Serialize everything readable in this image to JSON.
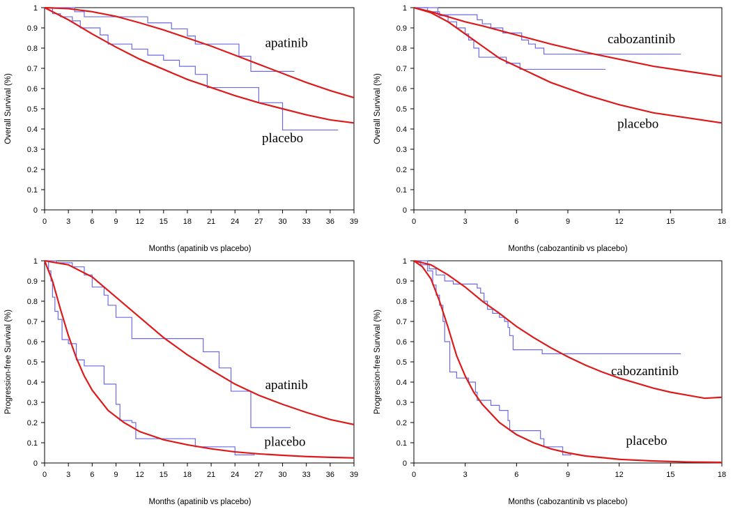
{
  "chart_data": [
    {
      "type": "line",
      "id": "panel-a",
      "xlabel": "Months (apatinib vs placebo)",
      "ylabel": "Overall Survival (%)",
      "xlim": [
        0,
        39
      ],
      "ylim": [
        0,
        1
      ],
      "xticks": [
        0,
        3,
        6,
        9,
        12,
        15,
        18,
        21,
        24,
        27,
        30,
        33,
        36,
        39
      ],
      "yticks": [
        0,
        0.1,
        0.2,
        0.3,
        0.4,
        0.5,
        0.6,
        0.7,
        0.8,
        0.9,
        1
      ],
      "series": [
        {
          "name": "apatinib",
          "kind": "km",
          "color": "#6a6ae6",
          "x": [
            0,
            3.8,
            5,
            9,
            13,
            16,
            18,
            19,
            24.5,
            26,
            31.5
          ],
          "y": [
            1,
            0.98,
            0.955,
            0.955,
            0.925,
            0.895,
            0.86,
            0.82,
            0.76,
            0.685,
            0.685
          ]
        },
        {
          "name": "placebo",
          "kind": "km",
          "color": "#6a6ae6",
          "x": [
            0,
            1,
            2,
            3.5,
            4.5,
            7,
            8,
            11,
            13,
            15,
            17,
            19,
            20.5,
            23,
            27,
            30,
            37
          ],
          "y": [
            1,
            0.97,
            0.955,
            0.935,
            0.9,
            0.865,
            0.82,
            0.795,
            0.765,
            0.74,
            0.71,
            0.67,
            0.605,
            0.605,
            0.53,
            0.395,
            0.395
          ]
        },
        {
          "name": "apatinib",
          "kind": "fit",
          "color": "#dd1a1a",
          "x": [
            0,
            3,
            6,
            9,
            12,
            15,
            18,
            21,
            24,
            27,
            30,
            33,
            36,
            39
          ],
          "y": [
            1,
            0.995,
            0.98,
            0.957,
            0.925,
            0.89,
            0.85,
            0.81,
            0.765,
            0.72,
            0.675,
            0.63,
            0.59,
            0.555
          ]
        },
        {
          "name": "placebo",
          "kind": "fit",
          "color": "#dd1a1a",
          "x": [
            0,
            3,
            6,
            9,
            12,
            15,
            18,
            21,
            24,
            27,
            30,
            33,
            36,
            39
          ],
          "y": [
            1,
            0.94,
            0.87,
            0.805,
            0.745,
            0.695,
            0.645,
            0.605,
            0.565,
            0.53,
            0.5,
            0.47,
            0.445,
            0.43
          ]
        }
      ],
      "annotations": [
        {
          "text": "apatinib",
          "x": 30.5,
          "y": 0.805
        },
        {
          "text": "placebo",
          "x": 30,
          "y": 0.335
        }
      ]
    },
    {
      "type": "line",
      "id": "panel-b",
      "xlabel": "Months (cabozantinib vs placebo)",
      "ylabel": "Overall Survival (%)",
      "xlim": [
        0,
        18
      ],
      "ylim": [
        0,
        1
      ],
      "xticks": [
        0,
        3,
        6,
        9,
        12,
        15,
        18
      ],
      "yticks": [
        0,
        0.1,
        0.2,
        0.3,
        0.4,
        0.5,
        0.6,
        0.7,
        0.8,
        0.9,
        1
      ],
      "series": [
        {
          "name": "cabozantinib",
          "kind": "km",
          "color": "#6a6ae6",
          "x": [
            0,
            1.4,
            3.7,
            4,
            4.5,
            5.2,
            6.3,
            6.7,
            7.1,
            7.6,
            15.6
          ],
          "y": [
            1,
            0.965,
            0.94,
            0.92,
            0.9,
            0.875,
            0.84,
            0.82,
            0.8,
            0.77,
            0.77
          ]
        },
        {
          "name": "placebo",
          "kind": "km",
          "color": "#6a6ae6",
          "x": [
            0,
            0.8,
            1.5,
            2,
            2.5,
            3,
            3.2,
            3.5,
            3.8,
            5.4,
            6.2,
            11.2
          ],
          "y": [
            1,
            0.98,
            0.96,
            0.93,
            0.9,
            0.87,
            0.84,
            0.8,
            0.755,
            0.725,
            0.695,
            0.695
          ]
        },
        {
          "name": "cabozantinib",
          "kind": "fit",
          "color": "#dd1a1a",
          "x": [
            0,
            1,
            2,
            3,
            4,
            6,
            8,
            10,
            12,
            14,
            16,
            18
          ],
          "y": [
            1,
            0.98,
            0.955,
            0.93,
            0.91,
            0.865,
            0.82,
            0.78,
            0.745,
            0.71,
            0.685,
            0.66
          ]
        },
        {
          "name": "placebo",
          "kind": "fit",
          "color": "#dd1a1a",
          "x": [
            0,
            1,
            2,
            3,
            4,
            5,
            6,
            8,
            10,
            12,
            14,
            16,
            18
          ],
          "y": [
            1,
            0.975,
            0.93,
            0.87,
            0.81,
            0.75,
            0.71,
            0.63,
            0.57,
            0.52,
            0.48,
            0.455,
            0.43
          ]
        }
      ],
      "annotations": [
        {
          "text": "cabozantinib",
          "x": 13.3,
          "y": 0.825
        },
        {
          "text": "placebo",
          "x": 13.1,
          "y": 0.405
        }
      ]
    },
    {
      "type": "line",
      "id": "panel-c",
      "xlabel": "Months (apatinib vs placebo)",
      "ylabel": "Progression-free Survival (%)",
      "xlim": [
        0,
        39
      ],
      "ylim": [
        0,
        1
      ],
      "xticks": [
        0,
        3,
        6,
        9,
        12,
        15,
        18,
        21,
        24,
        27,
        30,
        33,
        36,
        39
      ],
      "yticks": [
        0,
        0.1,
        0.2,
        0.3,
        0.4,
        0.5,
        0.6,
        0.7,
        0.8,
        0.9,
        1
      ],
      "series": [
        {
          "name": "apatinib",
          "kind": "km",
          "color": "#6a6ae6",
          "x": [
            0,
            1.5,
            3.5,
            5,
            6,
            7.5,
            8,
            9,
            11,
            20,
            22,
            23.5,
            26,
            31
          ],
          "y": [
            1,
            0.99,
            0.97,
            0.93,
            0.87,
            0.83,
            0.78,
            0.72,
            0.615,
            0.55,
            0.47,
            0.355,
            0.175,
            0.175
          ]
        },
        {
          "name": "placebo",
          "kind": "km",
          "color": "#6a6ae6",
          "x": [
            0,
            0.5,
            0.8,
            1,
            1.3,
            1.7,
            2.2,
            3,
            4,
            5,
            7.5,
            9,
            9.5,
            11,
            11.5,
            19,
            24,
            26.5
          ],
          "y": [
            1,
            0.95,
            0.9,
            0.82,
            0.75,
            0.71,
            0.61,
            0.59,
            0.51,
            0.48,
            0.39,
            0.29,
            0.21,
            0.2,
            0.12,
            0.08,
            0.04,
            0.04
          ]
        },
        {
          "name": "apatinib",
          "kind": "fit",
          "color": "#dd1a1a",
          "x": [
            0,
            3,
            6,
            9,
            12,
            15,
            18,
            21,
            24,
            27,
            30,
            33,
            36,
            39
          ],
          "y": [
            1,
            0.98,
            0.92,
            0.82,
            0.72,
            0.62,
            0.535,
            0.46,
            0.39,
            0.335,
            0.29,
            0.25,
            0.215,
            0.19
          ]
        },
        {
          "name": "placebo",
          "kind": "fit",
          "color": "#dd1a1a",
          "x": [
            0,
            1,
            2,
            3,
            4,
            5,
            6,
            7,
            8,
            9,
            10,
            12,
            15,
            18,
            21,
            24,
            27,
            30,
            33,
            36,
            39
          ],
          "y": [
            1,
            0.9,
            0.76,
            0.63,
            0.52,
            0.43,
            0.36,
            0.31,
            0.26,
            0.23,
            0.2,
            0.155,
            0.115,
            0.09,
            0.07,
            0.055,
            0.045,
            0.038,
            0.032,
            0.028,
            0.025
          ]
        }
      ],
      "annotations": [
        {
          "text": "apatinib",
          "x": 30.5,
          "y": 0.365
        },
        {
          "text": "placebo",
          "x": 30.3,
          "y": 0.085
        }
      ]
    },
    {
      "type": "line",
      "id": "panel-d",
      "xlabel": "Months (cabozantinib vs placebo)",
      "ylabel": "Progression-free Survival (%)",
      "xlim": [
        0,
        18
      ],
      "ylim": [
        0,
        1
      ],
      "xticks": [
        0,
        3,
        6,
        9,
        12,
        15,
        18
      ],
      "yticks": [
        0,
        0.1,
        0.2,
        0.3,
        0.4,
        0.5,
        0.6,
        0.7,
        0.8,
        0.9,
        1
      ],
      "series": [
        {
          "name": "cabozantinib",
          "kind": "km",
          "color": "#6a6ae6",
          "x": [
            0,
            0.4,
            0.9,
            1.3,
            1.8,
            2.3,
            3.7,
            3.9,
            4.1,
            4.3,
            4.6,
            5,
            5.3,
            5.5,
            5.6,
            5.8,
            7.5,
            15.6
          ],
          "y": [
            1,
            0.98,
            0.96,
            0.93,
            0.9,
            0.885,
            0.865,
            0.84,
            0.8,
            0.76,
            0.74,
            0.72,
            0.7,
            0.67,
            0.63,
            0.56,
            0.54,
            0.54
          ]
        },
        {
          "name": "placebo",
          "kind": "km",
          "color": "#6a6ae6",
          "x": [
            0,
            0.8,
            1.1,
            1.3,
            1.5,
            1.7,
            1.8,
            2.1,
            2.5,
            3.2,
            3.6,
            3.7,
            4.5,
            5,
            5.5,
            5.6,
            7.4,
            7.6,
            8.7,
            9.2
          ],
          "y": [
            1,
            0.95,
            0.88,
            0.83,
            0.78,
            0.7,
            0.6,
            0.45,
            0.42,
            0.4,
            0.35,
            0.31,
            0.285,
            0.26,
            0.21,
            0.16,
            0.12,
            0.08,
            0.04,
            0.04
          ]
        },
        {
          "name": "cabozantinib",
          "kind": "fit",
          "color": "#dd1a1a",
          "x": [
            0,
            1,
            2,
            3,
            4,
            5,
            6,
            7,
            8,
            9,
            10,
            11,
            12,
            13,
            14,
            15,
            16,
            17,
            18
          ],
          "y": [
            1,
            0.98,
            0.93,
            0.87,
            0.8,
            0.74,
            0.675,
            0.62,
            0.57,
            0.525,
            0.485,
            0.45,
            0.42,
            0.395,
            0.37,
            0.35,
            0.335,
            0.32,
            0.325
          ]
        },
        {
          "name": "placebo",
          "kind": "fit",
          "color": "#dd1a1a",
          "x": [
            0,
            0.5,
            1,
            1.5,
            2,
            2.5,
            3,
            3.5,
            4,
            5,
            6,
            7,
            8,
            9,
            10,
            12,
            14,
            16,
            18
          ],
          "y": [
            1,
            0.97,
            0.91,
            0.8,
            0.67,
            0.53,
            0.43,
            0.35,
            0.29,
            0.2,
            0.14,
            0.1,
            0.07,
            0.05,
            0.035,
            0.018,
            0.01,
            0.005,
            0.003
          ]
        }
      ],
      "annotations": [
        {
          "text": "cabozantinib",
          "x": 13.5,
          "y": 0.435
        },
        {
          "text": "placebo",
          "x": 13.6,
          "y": 0.09
        }
      ]
    }
  ]
}
